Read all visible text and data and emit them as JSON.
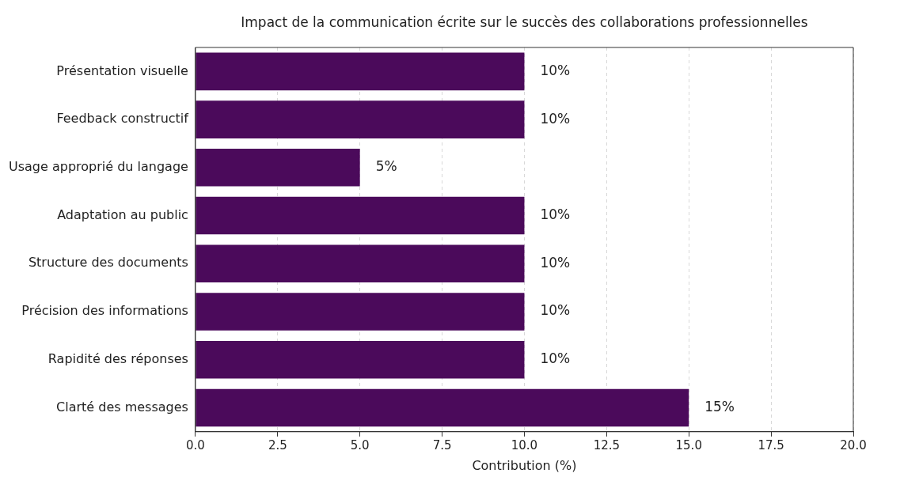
{
  "chart_data": {
    "type": "bar",
    "orientation": "horizontal",
    "title": "Impact de la communication écrite sur le succès des collaborations professionnelles",
    "xlabel": "Contribution (%)",
    "categories": [
      "Présentation visuelle",
      "Feedback constructif",
      "Usage approprié du langage",
      "Adaptation au public",
      "Structure des documents",
      "Précision des informations",
      "Rapidité des réponses",
      "Clarté des messages"
    ],
    "values": [
      10,
      10,
      5,
      10,
      10,
      10,
      10,
      15
    ],
    "value_labels": [
      "10%",
      "10%",
      "5%",
      "10%",
      "10%",
      "10%",
      "10%",
      "15%"
    ],
    "color": "#4b0a5b",
    "xlim": [
      0,
      20
    ],
    "xticks": [
      {
        "value": 0,
        "label": "0.0"
      },
      {
        "value": 2.5,
        "label": "2.5"
      },
      {
        "value": 5,
        "label": "5.0"
      },
      {
        "value": 7.5,
        "label": "7.5"
      },
      {
        "value": 10,
        "label": "10.0"
      },
      {
        "value": 12.5,
        "label": "12.5"
      },
      {
        "value": 15,
        "label": "15.0"
      },
      {
        "value": 17.5,
        "label": "17.5"
      },
      {
        "value": 20,
        "label": "20.0"
      }
    ],
    "grid": "x",
    "legend": false
  }
}
